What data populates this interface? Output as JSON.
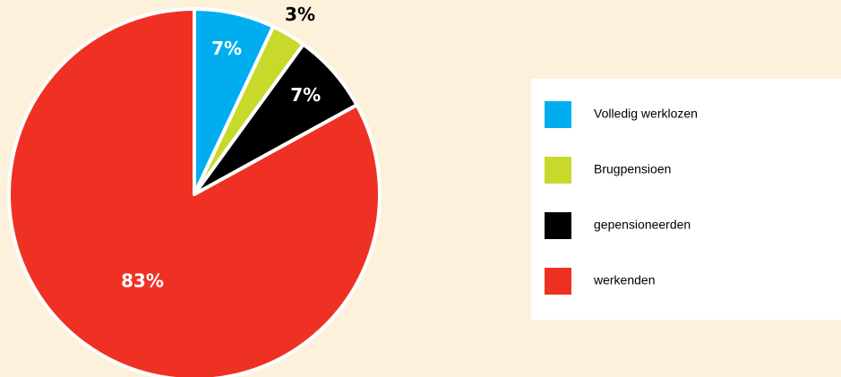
{
  "chart_data": {
    "type": "pie",
    "labels": [
      "Volledig werklozen",
      "Brugpensioen",
      "gepensioneerden",
      "werkenden"
    ],
    "values": [
      7,
      3,
      7,
      83
    ],
    "value_labels": [
      "7%",
      "3%",
      "7%",
      "83%"
    ],
    "colors": [
      "#00aeef",
      "#c8d92b",
      "#000000",
      "#ef3124"
    ],
    "legend": "right"
  }
}
